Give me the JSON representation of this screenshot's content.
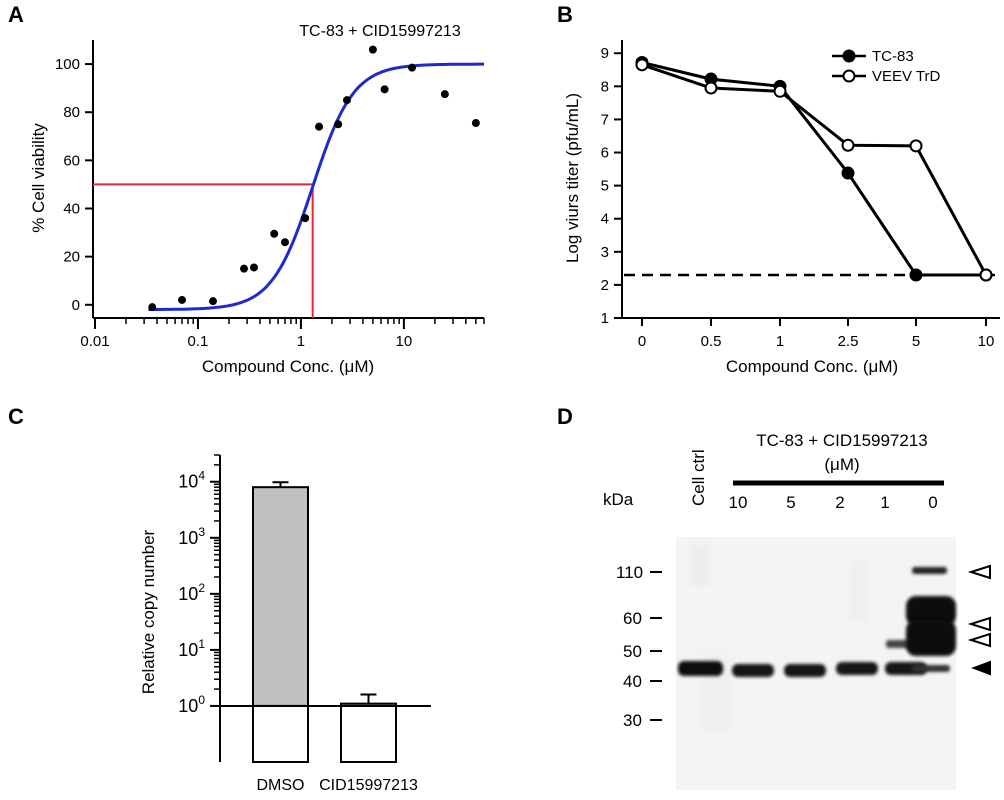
{
  "chart_data": [
    {
      "panel": "A",
      "type": "scatter",
      "title": "TC-83 + CID15997213",
      "xlabel": "Compound Conc. (μM)",
      "ylabel": "% Cell viability",
      "xscale": "log",
      "xlim": [
        0.01,
        60
      ],
      "ylim": [
        -3,
        110
      ],
      "xticks": [
        0.01,
        0.1,
        1,
        10
      ],
      "xticklabels": [
        "0.01",
        "0.1",
        "1",
        "10"
      ],
      "yticks": [
        0,
        20,
        40,
        60,
        80,
        100
      ],
      "yticklabels": [
        "0",
        "20",
        "40",
        "60",
        "80",
        "100"
      ],
      "points": [
        [
          0.036,
          -1
        ],
        [
          0.07,
          2
        ],
        [
          0.14,
          1.5
        ],
        [
          0.28,
          15
        ],
        [
          0.35,
          15.5
        ],
        [
          0.55,
          29.5
        ],
        [
          0.7,
          26
        ],
        [
          1.1,
          36
        ],
        [
          1.5,
          74
        ],
        [
          2.3,
          75
        ],
        [
          2.8,
          85
        ],
        [
          5,
          106
        ],
        [
          6.5,
          89.5
        ],
        [
          12,
          98.5
        ],
        [
          25,
          87.5
        ],
        [
          50,
          75.5
        ]
      ],
      "fit_curve": {
        "bottom": -2,
        "top": 100,
        "ec50": 1.3,
        "hill": 2.2,
        "color": "#1f2acc"
      },
      "ec50_guide": {
        "x": 1.3,
        "y": 50,
        "color": "#e8262a"
      }
    },
    {
      "panel": "B",
      "type": "line",
      "xlabel": "Compound Conc. (μM)",
      "ylabel": "Log viurs titer (pfu/mL)",
      "categories": [
        "0",
        "0.5",
        "1",
        "2.5",
        "5",
        "10"
      ],
      "ylim": [
        1,
        9.4
      ],
      "yticks": [
        1,
        2,
        3,
        4,
        5,
        6,
        7,
        8,
        9
      ],
      "yticklabels": [
        "1",
        "2",
        "3",
        "4",
        "5",
        "6",
        "7",
        "8",
        "9"
      ],
      "series": [
        {
          "name": "TC-83",
          "values": [
            8.72,
            8.22,
            8.0,
            5.38,
            2.3,
            2.3
          ],
          "marker": "filled"
        },
        {
          "name": "VEEV TrD",
          "values": [
            8.65,
            7.95,
            7.85,
            6.22,
            6.2,
            2.3
          ],
          "marker": "open"
        }
      ],
      "detection_limit": 2.3,
      "legend": "top-right"
    },
    {
      "panel": "C",
      "type": "bar",
      "ylabel": "Relative copy number",
      "yscale": "log",
      "ylim": [
        0.1,
        30000
      ],
      "yticklabels": [
        {
          "base": "10",
          "exp": "0"
        },
        {
          "base": "10",
          "exp": "1"
        },
        {
          "base": "10",
          "exp": "2"
        },
        {
          "base": "10",
          "exp": "3"
        },
        {
          "base": "10",
          "exp": "4"
        }
      ],
      "categories": [
        "DMSO",
        "CID15997213"
      ],
      "values": [
        8000,
        1.1
      ],
      "errors": [
        1800,
        0.5
      ],
      "bar_color": "#c0c0c0",
      "baseline": 1
    }
  ],
  "panel_labels": {
    "a": "A",
    "b": "B",
    "c": "C",
    "d": "D"
  },
  "blot": {
    "title_line1": "TC-83 + CID15997213",
    "title_line2": "(μM)",
    "control_label": "Cell ctrl",
    "kda_label": "kDa",
    "concentrations": [
      "10",
      "5",
      "2",
      "1",
      "0"
    ],
    "markers": [
      "110",
      "60",
      "50",
      "40",
      "30"
    ]
  }
}
